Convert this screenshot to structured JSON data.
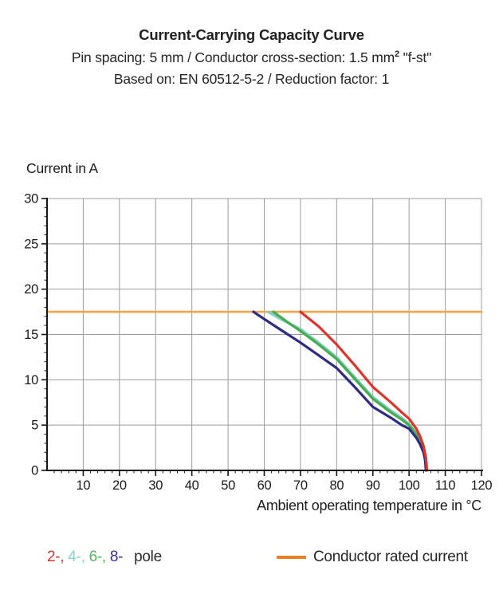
{
  "header": {
    "title": "Current-Carrying Capacity Curve",
    "subtitle_pre": "Pin spacing: 5 mm / Conductor cross-section: 1.5 mm",
    "subtitle_sup": "2",
    "subtitle_post": " \"f-st\"",
    "based_on": "Based on: EN 60512-5-2 / Reduction factor: 1"
  },
  "chart_data": {
    "type": "line",
    "title": "Current-Carrying Capacity Curve",
    "xlabel": "Ambient operating temperature in °C",
    "ylabel": "Current in A",
    "xlim": [
      0,
      120
    ],
    "ylim": [
      0,
      30
    ],
    "x_major_ticks": [
      10,
      20,
      30,
      40,
      50,
      60,
      70,
      80,
      90,
      100,
      110,
      120
    ],
    "y_major_ticks": [
      0,
      5,
      10,
      15,
      20,
      25,
      30
    ],
    "x_minor_step": 2,
    "y_minor_step": 1,
    "grid": true,
    "grid_color": "#9c9c9c",
    "axis_color": "#161616",
    "legend_position": "bottom",
    "series": [
      {
        "name": "Conductor rated current",
        "color": "#F2A648",
        "width": 2.6,
        "points": [
          [
            0,
            17.5
          ],
          [
            120,
            17.5
          ]
        ]
      },
      {
        "name": "4-pole",
        "color": "#85CEC6",
        "width": 3.2,
        "points": [
          [
            61,
            17.5
          ],
          [
            65,
            16.6
          ],
          [
            70,
            15.6
          ],
          [
            75,
            14.1
          ],
          [
            80,
            12.5
          ],
          [
            85,
            10.3
          ],
          [
            90,
            8.1
          ],
          [
            95,
            6.6
          ],
          [
            98,
            5.8
          ],
          [
            100,
            5.1
          ],
          [
            102,
            4.1
          ],
          [
            103,
            3.4
          ],
          [
            104,
            2.4
          ],
          [
            104.5,
            1.5
          ],
          [
            104.7,
            0.8
          ],
          [
            104.8,
            0
          ]
        ]
      },
      {
        "name": "6-pole",
        "color": "#43AE4F",
        "width": 3.2,
        "points": [
          [
            62.5,
            17.5
          ],
          [
            67,
            16.2
          ],
          [
            70,
            15.4
          ],
          [
            75,
            13.9
          ],
          [
            80,
            12.3
          ],
          [
            85,
            10.1
          ],
          [
            90,
            7.9
          ],
          [
            95,
            6.4
          ],
          [
            98,
            5.6
          ],
          [
            100,
            5.0
          ],
          [
            102,
            4.0
          ],
          [
            103,
            3.3
          ],
          [
            104,
            2.3
          ],
          [
            104.5,
            1.4
          ],
          [
            104.65,
            0.7
          ],
          [
            104.75,
            0
          ]
        ]
      },
      {
        "name": "8-pole",
        "color": "#2E2B86",
        "width": 3.2,
        "points": [
          [
            57,
            17.5
          ],
          [
            60,
            16.7
          ],
          [
            65,
            15.4
          ],
          [
            70,
            14.1
          ],
          [
            75,
            12.7
          ],
          [
            80,
            11.3
          ],
          [
            85,
            9.2
          ],
          [
            90,
            7.0
          ],
          [
            95,
            5.8
          ],
          [
            98,
            5.0
          ],
          [
            100,
            4.6
          ],
          [
            102,
            3.6
          ],
          [
            103,
            2.9
          ],
          [
            104,
            2.0
          ],
          [
            104.4,
            1.2
          ],
          [
            104.55,
            0.6
          ],
          [
            104.65,
            0
          ]
        ]
      },
      {
        "name": "2-pole",
        "color": "#E0342B",
        "width": 3.2,
        "points": [
          [
            70,
            17.5
          ],
          [
            75,
            15.9
          ],
          [
            80,
            13.9
          ],
          [
            85,
            11.6
          ],
          [
            90,
            9.2
          ],
          [
            95,
            7.5
          ],
          [
            98,
            6.4
          ],
          [
            100,
            5.7
          ],
          [
            102,
            4.6
          ],
          [
            103,
            3.8
          ],
          [
            104,
            2.7
          ],
          [
            104.6,
            1.5
          ],
          [
            104.8,
            0.8
          ],
          [
            104.9,
            0
          ]
        ]
      }
    ],
    "rated_current_A": 17.5,
    "all_curves_reach_zero_near_C": 105
  },
  "legend": {
    "poles": [
      {
        "label": "2-,",
        "color": "#D93732"
      },
      {
        "label": "4-,",
        "color": "#8FD0C9"
      },
      {
        "label": "6-,",
        "color": "#54B55F"
      },
      {
        "label": "8-",
        "color": "#36309B"
      }
    ],
    "pole_word": "pole",
    "rated": {
      "label": "Conductor rated current",
      "color": "#EE7E20"
    }
  }
}
